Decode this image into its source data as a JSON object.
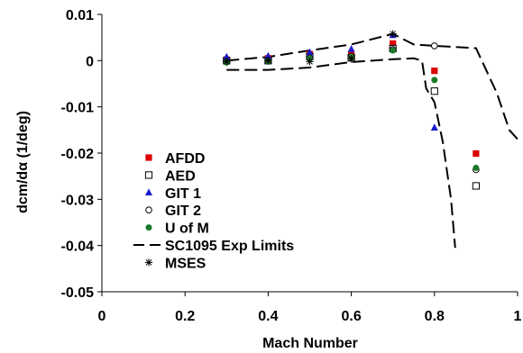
{
  "chart_data": {
    "type": "scatter",
    "xlabel": "Mach Number",
    "ylabel": "dcm/dα (1/deg)",
    "xlim": [
      0,
      1
    ],
    "ylim": [
      -0.05,
      0.01
    ],
    "x_ticks": [
      "0",
      "0.2",
      "0.4",
      "0.6",
      "0.8",
      "1"
    ],
    "y_ticks": [
      "0.01",
      "0",
      "-0.01",
      "-0.02",
      "-0.03",
      "-0.04",
      "-0.05"
    ],
    "grid": false,
    "legend_position": "left-center",
    "series": [
      {
        "name": "AFDD",
        "marker": "filled-square",
        "color": "#dd0000",
        "points": [
          [
            0.3,
            0.0002
          ],
          [
            0.4,
            0.0005
          ],
          [
            0.5,
            0.0014
          ],
          [
            0.6,
            0.0012
          ],
          [
            0.7,
            0.0037
          ],
          [
            0.8,
            -0.0022
          ],
          [
            0.9,
            -0.0201
          ]
        ]
      },
      {
        "name": "AED",
        "marker": "open-square",
        "color": "#000000",
        "points": [
          [
            0.3,
            0.0
          ],
          [
            0.4,
            0.0
          ],
          [
            0.5,
            0.0009
          ],
          [
            0.6,
            0.0006
          ],
          [
            0.7,
            0.0026
          ],
          [
            0.8,
            -0.0066
          ],
          [
            0.9,
            -0.0271
          ]
        ]
      },
      {
        "name": "GIT 1",
        "marker": "filled-triangle",
        "color": "#1a1acc",
        "points": [
          [
            0.3,
            0.0008
          ],
          [
            0.4,
            0.001
          ],
          [
            0.5,
            0.0018
          ],
          [
            0.6,
            0.0025
          ],
          [
            0.7,
            0.0055
          ],
          [
            0.8,
            -0.0145
          ]
        ]
      },
      {
        "name": "GIT 2",
        "marker": "open-circle",
        "color": "#000000",
        "points": [
          [
            0.3,
            -0.0003
          ],
          [
            0.4,
            -0.0001
          ],
          [
            0.5,
            0.0006
          ],
          [
            0.6,
            0.0009
          ],
          [
            0.7,
            0.0024
          ],
          [
            0.8,
            0.0032
          ],
          [
            0.9,
            -0.0236
          ]
        ]
      },
      {
        "name": "U of M",
        "marker": "filled-circle",
        "color": "#1a7a2a",
        "points": [
          [
            0.3,
            -0.0004
          ],
          [
            0.4,
            -0.0002
          ],
          [
            0.5,
            0.0004
          ],
          [
            0.6,
            0.0007
          ],
          [
            0.7,
            0.0022
          ],
          [
            0.8,
            -0.0042
          ],
          [
            0.9,
            -0.0232
          ]
        ]
      },
      {
        "name": "SC1095 Exp Limits",
        "marker": "dashed-line",
        "color": "#000000",
        "upper": [
          [
            0.3,
            0.0
          ],
          [
            0.4,
            0.0008
          ],
          [
            0.5,
            0.0022
          ],
          [
            0.6,
            0.0035
          ],
          [
            0.7,
            0.0058
          ],
          [
            0.75,
            0.0035
          ],
          [
            0.8,
            0.0032
          ],
          [
            0.9,
            0.0027
          ],
          [
            0.95,
            -0.007
          ],
          [
            0.98,
            -0.015
          ],
          [
            1.0,
            -0.017
          ]
        ],
        "lower": [
          [
            0.3,
            -0.002
          ],
          [
            0.4,
            -0.002
          ],
          [
            0.5,
            -0.0015
          ],
          [
            0.6,
            -0.0003
          ],
          [
            0.7,
            0.0003
          ],
          [
            0.75,
            0.0005
          ],
          [
            0.77,
            0.0
          ],
          [
            0.78,
            -0.006
          ],
          [
            0.8,
            -0.009
          ],
          [
            0.82,
            -0.0175
          ],
          [
            0.84,
            -0.03
          ],
          [
            0.85,
            -0.0405
          ]
        ]
      },
      {
        "name": "MSES",
        "marker": "asterisk",
        "color": "#000000",
        "points": [
          [
            0.3,
            -0.0002
          ],
          [
            0.4,
            0.0
          ],
          [
            0.5,
            -0.0002
          ],
          [
            0.6,
            0.0004
          ],
          [
            0.7,
            0.0058
          ]
        ]
      }
    ]
  }
}
